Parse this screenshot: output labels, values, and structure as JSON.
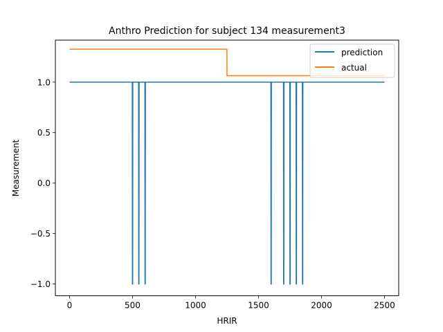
{
  "chart_data": {
    "type": "line",
    "title": "Anthro Prediction for subject 134 measurement3",
    "xlabel": "HRIR",
    "ylabel": "Measurement",
    "xlim": [
      -112.5,
      2612.5
    ],
    "ylim": [
      -1.1165,
      1.4165
    ],
    "x_ticks": [
      0,
      500,
      1000,
      1500,
      2000,
      2500
    ],
    "x_tick_labels": [
      "0",
      "500",
      "1000",
      "1500",
      "2000",
      "2500"
    ],
    "y_ticks": [
      -1.0,
      -0.5,
      0.0,
      0.5,
      1.0
    ],
    "y_tick_labels": [
      "−1.0",
      "−0.5",
      "0.0",
      "0.5",
      "1.0"
    ],
    "grid": false,
    "legend": {
      "placement": "upper right"
    },
    "series": [
      {
        "name": "prediction",
        "color": "#1f77b4",
        "x_range": [
          0,
          2500
        ],
        "baseline": 1.0,
        "dips": [
          {
            "x": 500,
            "y": -1.0
          },
          {
            "x": 550,
            "y": -1.0
          },
          {
            "x": 600,
            "y": -1.0
          },
          {
            "x": 1600,
            "y": -1.0
          },
          {
            "x": 1700,
            "y": -1.0
          },
          {
            "x": 1750,
            "y": -1.0
          },
          {
            "x": 1800,
            "y": -1.0
          },
          {
            "x": 1850,
            "y": -1.0
          }
        ]
      },
      {
        "name": "actual",
        "color": "#ff7f0e",
        "x": [
          0,
          1249,
          1250,
          2500
        ],
        "y": [
          1.3264,
          1.3264,
          1.0636,
          1.0636
        ]
      }
    ]
  }
}
